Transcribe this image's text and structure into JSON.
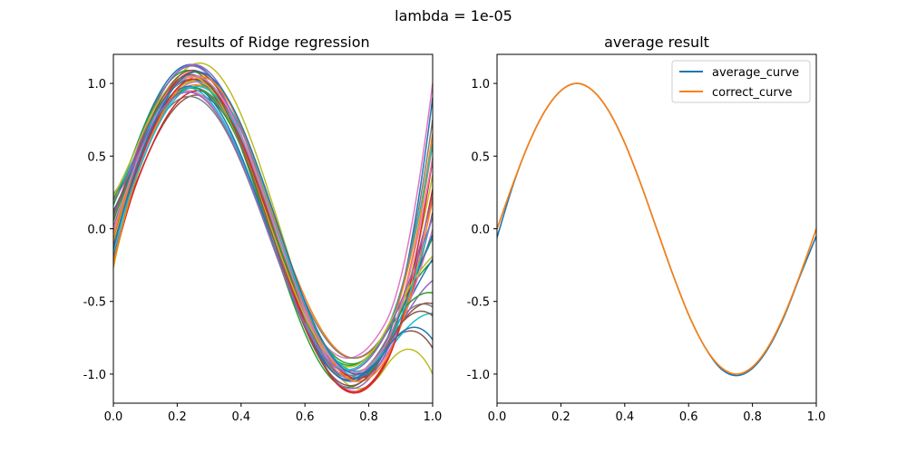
{
  "figure": {
    "suptitle": "lambda = 1e-05"
  },
  "chart_data": [
    {
      "type": "line",
      "title": "results of Ridge regression",
      "xlabel": "",
      "ylabel": "",
      "xlim": [
        0.0,
        1.0
      ],
      "ylim": [
        -1.2,
        1.2
      ],
      "xticks": [
        "0.0",
        "0.2",
        "0.4",
        "0.6",
        "0.8",
        "1.0"
      ],
      "yticks": [
        "-1.0",
        "-0.5",
        "0.0",
        "0.5",
        "1.0"
      ],
      "grid": false,
      "legend": null,
      "curve_model": "y = A*sin(2*pi*x + phase) + offset, with the tail near x = 1 curled by extra",
      "series": [
        {
          "A": 1.12,
          "phase": -0.25,
          "offset": 0.02,
          "extra": -0.55,
          "color": "#bcbd22"
        },
        {
          "A": 1.08,
          "phase": 0.1,
          "offset": 0.05,
          "extra": 0.5,
          "color": "#1f77b4"
        },
        {
          "A": 0.95,
          "phase": -0.15,
          "offset": -0.03,
          "extra": -0.45,
          "color": "#8c564b"
        },
        {
          "A": 1.05,
          "phase": 0.05,
          "offset": 0.0,
          "extra": 0.35,
          "color": "#ff7f0e"
        },
        {
          "A": 0.98,
          "phase": 0.12,
          "offset": 0.04,
          "extra": -0.2,
          "color": "#2ca02c"
        },
        {
          "A": 1.1,
          "phase": -0.05,
          "offset": -0.02,
          "extra": 0.2,
          "color": "#d62728"
        },
        {
          "A": 0.92,
          "phase": 0.2,
          "offset": 0.03,
          "extra": 0.55,
          "color": "#e377c2"
        },
        {
          "A": 1.02,
          "phase": -0.2,
          "offset": 0.0,
          "extra": -0.3,
          "color": "#17becf"
        },
        {
          "A": 1.07,
          "phase": 0.0,
          "offset": 0.06,
          "extra": 0.1,
          "color": "#9467bd"
        },
        {
          "A": 0.96,
          "phase": 0.15,
          "offset": -0.05,
          "extra": -0.35,
          "color": "#7f7f7f"
        },
        {
          "A": 1.0,
          "phase": -0.1,
          "offset": 0.02,
          "extra": 0.25,
          "color": "#bcbd22"
        },
        {
          "A": 1.04,
          "phase": 0.08,
          "offset": -0.01,
          "extra": -0.15,
          "color": "#1f77b4"
        },
        {
          "A": 0.94,
          "phase": -0.08,
          "offset": 0.05,
          "extra": 0.4,
          "color": "#ff7f0e"
        },
        {
          "A": 1.09,
          "phase": 0.18,
          "offset": 0.0,
          "extra": -0.1,
          "color": "#2ca02c"
        },
        {
          "A": 0.99,
          "phase": -0.18,
          "offset": -0.04,
          "extra": 0.15,
          "color": "#d62728"
        },
        {
          "A": 1.06,
          "phase": 0.02,
          "offset": 0.03,
          "extra": -0.4,
          "color": "#8c564b"
        },
        {
          "A": 0.97,
          "phase": 0.22,
          "offset": 0.0,
          "extra": 0.3,
          "color": "#17becf"
        },
        {
          "A": 1.03,
          "phase": -0.12,
          "offset": -0.02,
          "extra": 0.05,
          "color": "#e377c2"
        },
        {
          "A": 1.11,
          "phase": 0.06,
          "offset": 0.01,
          "extra": -0.25,
          "color": "#9467bd"
        },
        {
          "A": 0.93,
          "phase": -0.02,
          "offset": 0.04,
          "extra": 0.45,
          "color": "#7f7f7f"
        },
        {
          "A": 1.01,
          "phase": 0.14,
          "offset": -0.03,
          "extra": -0.05,
          "color": "#1f77b4"
        },
        {
          "A": 1.05,
          "phase": -0.22,
          "offset": 0.0,
          "extra": 0.2,
          "color": "#ff7f0e"
        },
        {
          "A": 0.95,
          "phase": 0.04,
          "offset": 0.02,
          "extra": -0.3,
          "color": "#2ca02c"
        },
        {
          "A": 1.08,
          "phase": -0.06,
          "offset": -0.05,
          "extra": 0.35,
          "color": "#d62728"
        },
        {
          "A": 1.0,
          "phase": 0.16,
          "offset": 0.05,
          "extra": -0.2,
          "color": "#bcbd22"
        },
        {
          "A": 0.98,
          "phase": -0.14,
          "offset": 0.0,
          "extra": 0.1,
          "color": "#17becf"
        },
        {
          "A": 1.07,
          "phase": 0.1,
          "offset": -0.01,
          "extra": -0.35,
          "color": "#8c564b"
        },
        {
          "A": 1.02,
          "phase": -0.04,
          "offset": 0.03,
          "extra": 0.3,
          "color": "#e377c2"
        },
        {
          "A": 0.96,
          "phase": 0.2,
          "offset": -0.02,
          "extra": 0.0,
          "color": "#9467bd"
        },
        {
          "A": 1.04,
          "phase": -0.16,
          "offset": 0.04,
          "extra": -0.45,
          "color": "#1f77b4"
        }
      ]
    },
    {
      "type": "line",
      "title": "average result",
      "xlabel": "",
      "ylabel": "",
      "xlim": [
        0.0,
        1.0
      ],
      "ylim": [
        -1.2,
        1.2
      ],
      "xticks": [
        "0.0",
        "0.2",
        "0.4",
        "0.6",
        "0.8",
        "1.0"
      ],
      "yticks": [
        "-1.0",
        "-0.5",
        "0.0",
        "0.5",
        "1.0"
      ],
      "grid": false,
      "legend": "top-right",
      "series": [
        {
          "name": "average_curve",
          "color": "#1f77b4",
          "x": [
            0.0,
            0.05,
            0.1,
            0.15,
            0.2,
            0.25,
            0.3,
            0.35,
            0.4,
            0.45,
            0.5,
            0.55,
            0.6,
            0.65,
            0.7,
            0.75,
            0.8,
            0.85,
            0.9,
            0.95,
            1.0
          ],
          "y": [
            -0.06,
            0.3,
            0.59,
            0.81,
            0.95,
            1.0,
            0.95,
            0.81,
            0.59,
            0.31,
            0.0,
            -0.31,
            -0.59,
            -0.81,
            -0.96,
            -1.01,
            -0.96,
            -0.82,
            -0.6,
            -0.32,
            -0.05
          ]
        },
        {
          "name": "correct_curve",
          "color": "#ff7f0e",
          "x": [
            0.0,
            0.05,
            0.1,
            0.15,
            0.2,
            0.25,
            0.3,
            0.35,
            0.4,
            0.45,
            0.5,
            0.55,
            0.6,
            0.65,
            0.7,
            0.75,
            0.8,
            0.85,
            0.9,
            0.95,
            1.0
          ],
          "y": [
            0.0,
            0.31,
            0.59,
            0.81,
            0.95,
            1.0,
            0.95,
            0.81,
            0.59,
            0.31,
            0.0,
            -0.31,
            -0.59,
            -0.81,
            -0.95,
            -1.0,
            -0.95,
            -0.81,
            -0.59,
            -0.31,
            0.0
          ]
        }
      ]
    }
  ]
}
